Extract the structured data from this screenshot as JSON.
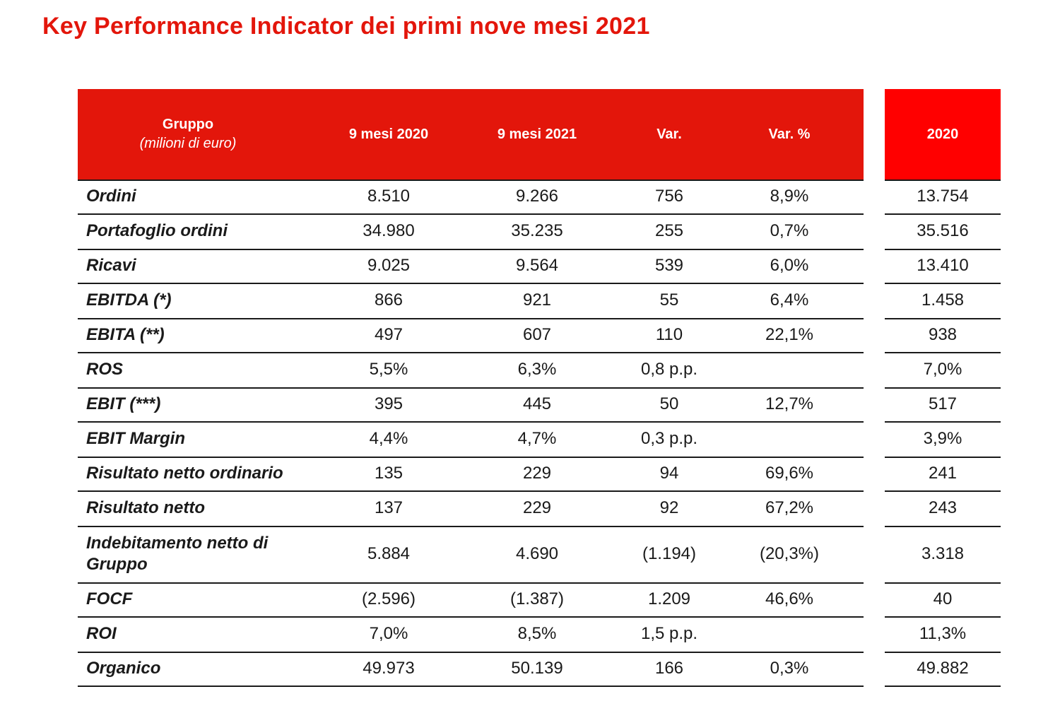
{
  "title": "Key Performance Indicator dei primi nove mesi 2021",
  "header": {
    "group_label": "Gruppo",
    "group_sub": "(milioni di euro)",
    "col1": "9 mesi 2020",
    "col2": "9 mesi 2021",
    "col3": "Var.",
    "col4": "Var. %",
    "side": "2020"
  },
  "rows": [
    {
      "label": "Ordini",
      "v1": "8.510",
      "v2": "9.266",
      "v3": "756",
      "v4": "8,9%",
      "side": "13.754"
    },
    {
      "label": "Portafoglio ordini",
      "v1": "34.980",
      "v2": "35.235",
      "v3": "255",
      "v4": "0,7%",
      "side": "35.516"
    },
    {
      "label": "Ricavi",
      "v1": "9.025",
      "v2": "9.564",
      "v3": "539",
      "v4": "6,0%",
      "side": "13.410"
    },
    {
      "label": "EBITDA (*)",
      "v1": "866",
      "v2": "921",
      "v3": "55",
      "v4": "6,4%",
      "side": "1.458"
    },
    {
      "label": "EBITA (**)",
      "v1": "497",
      "v2": "607",
      "v3": "110",
      "v4": "22,1%",
      "side": "938"
    },
    {
      "label": "ROS",
      "v1": "5,5%",
      "v2": "6,3%",
      "v3": "0,8 p.p.",
      "v4": "",
      "side": "7,0%"
    },
    {
      "label": "EBIT (***)",
      "v1": "395",
      "v2": "445",
      "v3": "50",
      "v4": "12,7%",
      "side": "517"
    },
    {
      "label": "EBIT Margin",
      "v1": "4,4%",
      "v2": "4,7%",
      "v3": "0,3 p.p.",
      "v4": "",
      "side": "3,9%"
    },
    {
      "label": "Risultato netto ordinario",
      "v1": "135",
      "v2": "229",
      "v3": "94",
      "v4": "69,6%",
      "side": "241"
    },
    {
      "label": "Risultato netto",
      "v1": "137",
      "v2": "229",
      "v3": "92",
      "v4": "67,2%",
      "side": "243"
    },
    {
      "label": "Indebitamento netto di Gruppo",
      "v1": "5.884",
      "v2": "4.690",
      "v3": "(1.194)",
      "v4": "(20,3%)",
      "side": "3.318"
    },
    {
      "label": "FOCF",
      "v1": "(2.596)",
      "v2": "(1.387)",
      "v3": "1.209",
      "v4": "46,6%",
      "side": "40"
    },
    {
      "label": "ROI",
      "v1": "7,0%",
      "v2": "8,5%",
      "v3": "1,5 p.p.",
      "v4": "",
      "side": "11,3%"
    },
    {
      "label": "Organico",
      "v1": "49.973",
      "v2": "50.139",
      "v3": "166",
      "v4": "0,3%",
      "side": "49.882"
    }
  ]
}
